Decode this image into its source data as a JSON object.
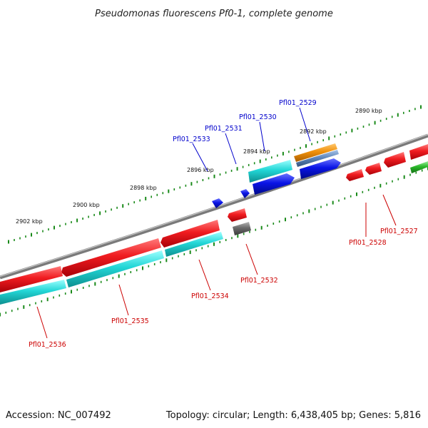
{
  "title": "Pseudomonas fluorescens Pf0-1, complete genome",
  "footer": {
    "accession": "Accession: NC_007492",
    "summary": "Topology: circular; Length: 6,438,405 bp; Genes: 5,816"
  },
  "scale_labels": [
    "2890 kbp",
    "2892 kbp",
    "2894 kbp",
    "2896 kbp",
    "2898 kbp",
    "2900 kbp",
    "2902 kbp"
  ],
  "genes": {
    "forward": [
      "Pfl01_2529",
      "Pfl01_2530",
      "Pfl01_2531",
      "Pfl01_2533"
    ],
    "reverse": [
      "Pfl01_2527",
      "Pfl01_2528",
      "Pfl01_2532",
      "Pfl01_2534",
      "Pfl01_2535",
      "Pfl01_2536"
    ]
  },
  "colors": {
    "backbone": "#7a7a7a",
    "forward_label": "#0000cc",
    "reverse_label": "#cc0000",
    "tick": "#1a8a1a",
    "red_gene": "#e8141a",
    "cyan_gene": "#1ccccc",
    "blue_gene": "#0a14e6",
    "grey_gene": "#6a6a6a",
    "orange_gene": "#f0900a",
    "green_gene": "#2ab82a"
  }
}
